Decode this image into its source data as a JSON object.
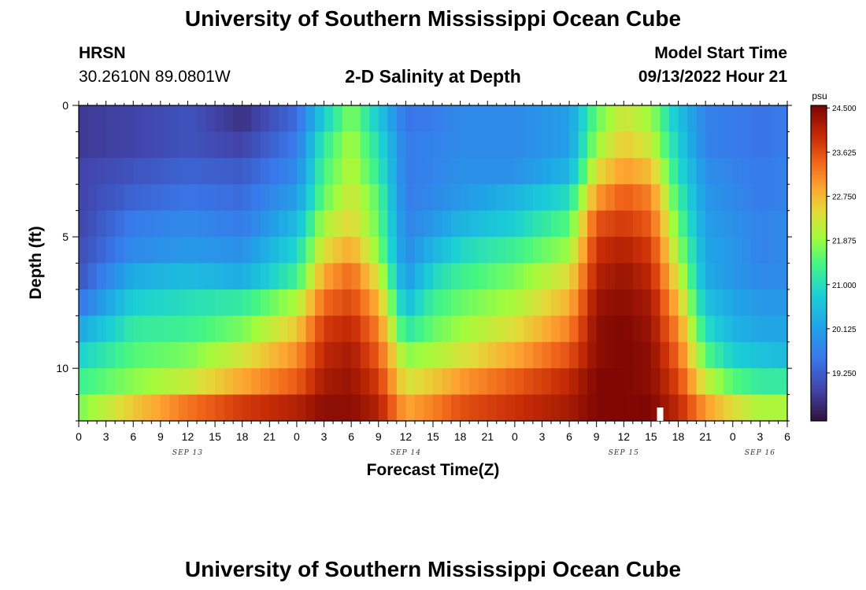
{
  "header": {
    "title": "University of Southern Mississippi Ocean Cube",
    "station_id": "HRSN",
    "coords": "30.2610N  89.0801W",
    "chart_title": "2-D Salinity at Depth",
    "model_label": "Model Start Time",
    "model_time": "09/13/2022 Hour 21"
  },
  "footer": {
    "title": "University of Southern Mississippi Ocean Cube"
  },
  "chart_data": {
    "type": "heatmap",
    "title": "2-D Salinity at Depth",
    "xlabel": "Forecast Time(Z)",
    "ylabel": "Depth (ft)",
    "x_start_hour": 0,
    "x_end_hour": 78,
    "x_tick_labels": [
      "0",
      "3",
      "6",
      "9",
      "12",
      "15",
      "18",
      "21",
      "0",
      "3",
      "6",
      "9",
      "12",
      "15",
      "18",
      "21",
      "0",
      "3",
      "6",
      "9",
      "12",
      "15",
      "18",
      "21",
      "0",
      "3",
      "6"
    ],
    "date_labels": [
      {
        "label": "SEP 13",
        "hour": 12
      },
      {
        "label": "SEP 14",
        "hour": 36
      },
      {
        "label": "SEP 15",
        "hour": 60
      },
      {
        "label": "SEP 16",
        "hour": 75
      }
    ],
    "y_range": [
      0,
      12
    ],
    "y_tick_labels": [
      "0",
      "5",
      "10"
    ],
    "depth_rows": [
      0.5,
      1.5,
      2.5,
      3.5,
      4.5,
      5.5,
      6.5,
      7.5,
      8.5,
      9.5,
      10.5,
      11.5
    ],
    "salinity_keyframes": {
      "hours": [
        0,
        6,
        12,
        18,
        24,
        27,
        30,
        33,
        36,
        39,
        42,
        48,
        54,
        57,
        60,
        63,
        66,
        69,
        72,
        75,
        78
      ],
      "rows": [
        [
          18.8,
          18.9,
          19.1,
          18.7,
          19.4,
          20.8,
          21.8,
          20.7,
          19.5,
          19.6,
          19.8,
          19.8,
          20.1,
          21.6,
          22.3,
          21.9,
          20.6,
          19.7,
          19.6,
          19.5,
          19.6
        ],
        [
          18.8,
          18.9,
          19.1,
          18.9,
          19.6,
          21.2,
          22.0,
          21.0,
          19.6,
          19.7,
          19.8,
          19.8,
          20.1,
          21.9,
          22.6,
          22.2,
          20.8,
          19.7,
          19.6,
          19.5,
          19.6
        ],
        [
          18.9,
          19.1,
          19.3,
          19.2,
          19.8,
          21.4,
          22.1,
          21.2,
          19.6,
          19.7,
          19.9,
          19.9,
          20.4,
          22.4,
          23.0,
          22.7,
          21.0,
          19.9,
          19.7,
          19.6,
          19.7
        ],
        [
          18.9,
          19.3,
          19.5,
          19.4,
          20.1,
          21.6,
          22.3,
          21.5,
          19.6,
          19.8,
          20.0,
          20.4,
          21.0,
          23.0,
          23.5,
          23.2,
          21.3,
          20.0,
          19.8,
          19.6,
          19.7
        ],
        [
          18.9,
          19.6,
          19.8,
          19.6,
          20.5,
          22.0,
          22.5,
          21.6,
          19.7,
          20.0,
          20.4,
          20.8,
          21.5,
          23.6,
          23.8,
          23.5,
          21.6,
          20.1,
          19.9,
          19.7,
          19.8
        ],
        [
          19.0,
          19.8,
          20.0,
          19.9,
          20.9,
          22.4,
          22.9,
          21.8,
          19.8,
          20.4,
          20.9,
          21.3,
          21.9,
          23.9,
          24.1,
          23.8,
          21.9,
          20.2,
          20.0,
          19.7,
          19.8
        ],
        [
          19.1,
          20.3,
          20.5,
          20.3,
          21.3,
          22.9,
          23.4,
          22.3,
          20.0,
          20.9,
          21.3,
          21.7,
          22.4,
          24.1,
          24.3,
          24.0,
          22.3,
          20.3,
          20.0,
          19.8,
          19.8
        ],
        [
          19.5,
          20.8,
          21.0,
          21.2,
          22.0,
          23.4,
          23.7,
          22.8,
          20.5,
          21.3,
          21.6,
          22.0,
          22.8,
          24.3,
          24.4,
          24.2,
          22.7,
          20.6,
          20.2,
          20.0,
          20.0
        ],
        [
          20.2,
          21.2,
          21.3,
          21.7,
          22.6,
          23.8,
          24.0,
          23.2,
          21.1,
          21.6,
          21.9,
          22.4,
          23.2,
          24.4,
          24.5,
          24.3,
          23.1,
          21.0,
          20.4,
          20.2,
          20.2
        ],
        [
          20.8,
          21.5,
          21.7,
          22.3,
          23.1,
          24.0,
          24.2,
          23.5,
          21.8,
          22.0,
          22.3,
          22.9,
          23.6,
          24.4,
          24.5,
          24.4,
          23.4,
          21.5,
          20.8,
          20.6,
          20.5
        ],
        [
          21.3,
          21.8,
          22.2,
          22.9,
          23.5,
          24.2,
          24.3,
          23.8,
          22.3,
          22.6,
          23.0,
          23.5,
          24.0,
          24.5,
          24.5,
          24.4,
          23.7,
          22.2,
          21.5,
          21.2,
          21.2
        ],
        [
          21.7,
          22.6,
          23.3,
          23.8,
          24.1,
          24.4,
          24.4,
          24.1,
          22.9,
          23.2,
          23.6,
          23.9,
          24.2,
          24.5,
          24.5,
          24.5,
          24.0,
          23.0,
          22.4,
          22.0,
          22.0
        ]
      ]
    },
    "colorbar": {
      "unit": "psu",
      "min": 18.3,
      "max": 24.55,
      "tick_values": [
        24.5,
        23.625,
        22.75,
        21.875,
        21.0,
        20.125,
        19.25
      ],
      "tick_labels": [
        "24.500",
        "23.625",
        "22.750",
        "21.875",
        "21.000",
        "20.125",
        "19.250"
      ]
    },
    "marker_hour": 64
  }
}
